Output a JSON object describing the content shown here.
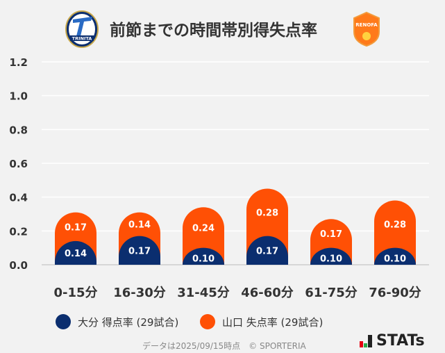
{
  "header": {
    "title": "前節までの時間帯別得失点率",
    "home_logo_text": "TRINITA",
    "away_logo_text": "RENOFA"
  },
  "chart_data": {
    "type": "bar",
    "stacked": true,
    "categories": [
      "0-15分",
      "16-30分",
      "31-45分",
      "46-60分",
      "61-75分",
      "76-90分"
    ],
    "series": [
      {
        "name": "大分 得点率 (29試合)",
        "color": "#0b2e6f",
        "values": [
          0.14,
          0.17,
          0.1,
          0.17,
          0.1,
          0.1
        ],
        "labels": [
          "0.14",
          "0.17",
          "0.10",
          "0.17",
          "0.10",
          "0.10"
        ]
      },
      {
        "name": "山口 失点率 (29試合)",
        "color": "#ff5005",
        "values": [
          0.17,
          0.14,
          0.24,
          0.28,
          0.17,
          0.28
        ],
        "labels": [
          "0.17",
          "0.14",
          "0.24",
          "0.28",
          "0.17",
          "0.28"
        ]
      }
    ],
    "ylim": [
      0,
      1.2
    ],
    "yticks": [
      "0.0",
      "0.2",
      "0.4",
      "0.6",
      "0.8",
      "1.0",
      "1.2"
    ],
    "grid": true,
    "legend": "bottom"
  },
  "footer": {
    "note": "データは2025/09/15時点　© SPORTERIA",
    "brand": "STATs"
  }
}
